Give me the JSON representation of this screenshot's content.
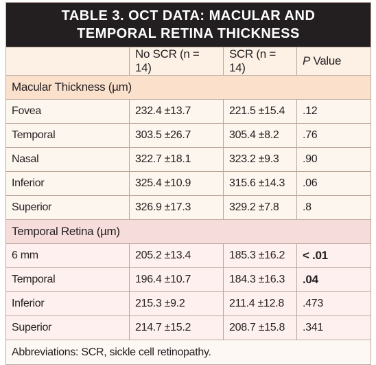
{
  "header": {
    "title": "TABLE 3. OCT DATA: MACULAR AND TEMPORAL RETINA THICKNESS"
  },
  "table": {
    "columns": [
      "No SCR (n = 14)",
      "SCR (n = 14)"
    ],
    "p_value_header": {
      "italic": "P",
      "text": "Value"
    },
    "sections": [
      {
        "label": "Macular Thickness (µm)",
        "rows": [
          [
            "Fovea",
            "232.4 ±13.7",
            "221.5 ±15.4",
            ".12"
          ],
          [
            "Temporal",
            "303.5 ±26.7",
            "305.4 ±8.2",
            ".76"
          ],
          [
            "Nasal",
            "322.7 ±18.1",
            "323.2 ±9.3",
            ".90"
          ],
          [
            "Inferior",
            "325.4 ±10.9",
            "315.6 ±14.3",
            ".06"
          ],
          [
            "Superior",
            "326.9 ±17.3",
            "329.2 ±7.8",
            ".8"
          ]
        ]
      },
      {
        "label": "Temporal Retina (µm)",
        "rows": [
          [
            "6 mm",
            "205.2 ±13.4",
            "185.3 ±16.2",
            "< .01"
          ],
          [
            "Temporal",
            "196.4 ±10.7",
            "184.3 ±16.3",
            ".04"
          ],
          [
            "Inferior",
            "215.3 ±9.2",
            "211.4 ±12.8",
            ".473"
          ],
          [
            "Superior",
            "214.7 ±15.2",
            "208.7 ±15.8",
            ".341"
          ]
        ]
      }
    ]
  },
  "footnote": "Abbreviations: SCR, sickle cell retinopathy."
}
